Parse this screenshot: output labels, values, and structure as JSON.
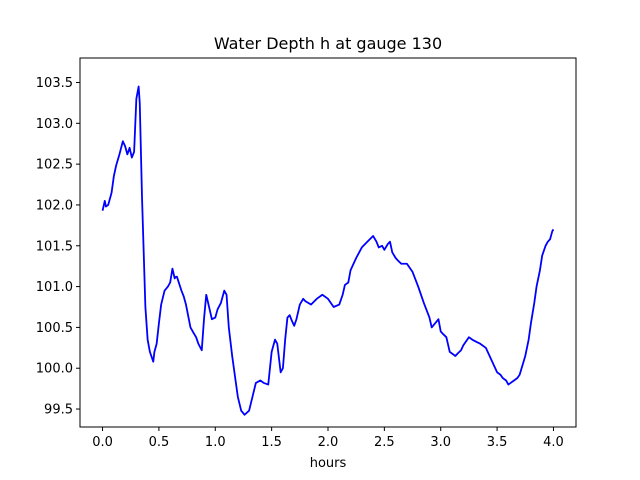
{
  "chart_data": {
    "type": "line",
    "title": "Water Depth h at gauge 130",
    "xlabel": "hours",
    "ylabel": "",
    "xlim": [
      -0.2,
      4.2
    ],
    "ylim": [
      99.28,
      103.8
    ],
    "xticks": [
      0.0,
      0.5,
      1.0,
      1.5,
      2.0,
      2.5,
      3.0,
      3.5,
      4.0
    ],
    "xtick_labels": [
      "0.0",
      "0.5",
      "1.0",
      "1.5",
      "2.0",
      "2.5",
      "3.0",
      "3.5",
      "4.0"
    ],
    "yticks": [
      99.5,
      100.0,
      100.5,
      101.0,
      101.5,
      102.0,
      102.5,
      103.0,
      103.5
    ],
    "ytick_labels": [
      "99.5",
      "100.0",
      "100.5",
      "101.0",
      "101.5",
      "102.0",
      "102.5",
      "103.0",
      "103.5"
    ],
    "grid": false,
    "legend": "none",
    "series": [
      {
        "color": "#0000ff",
        "x": [
          0.0,
          0.02,
          0.03,
          0.05,
          0.08,
          0.1,
          0.12,
          0.15,
          0.18,
          0.2,
          0.22,
          0.24,
          0.26,
          0.28,
          0.3,
          0.32,
          0.33,
          0.35,
          0.37,
          0.38,
          0.4,
          0.42,
          0.45,
          0.46,
          0.48,
          0.5,
          0.52,
          0.55,
          0.58,
          0.6,
          0.62,
          0.64,
          0.65,
          0.66,
          0.7,
          0.72,
          0.74,
          0.78,
          0.8,
          0.83,
          0.85,
          0.88,
          0.9,
          0.92,
          0.95,
          0.97,
          1.0,
          1.02,
          1.05,
          1.08,
          1.1,
          1.12,
          1.15,
          1.18,
          1.2,
          1.23,
          1.26,
          1.3,
          1.33,
          1.36,
          1.4,
          1.43,
          1.47,
          1.5,
          1.53,
          1.55,
          1.58,
          1.6,
          1.62,
          1.64,
          1.66,
          1.68,
          1.7,
          1.72,
          1.75,
          1.78,
          1.8,
          1.85,
          1.9,
          1.95,
          2.0,
          2.05,
          2.1,
          2.13,
          2.15,
          2.18,
          2.2,
          2.25,
          2.3,
          2.35,
          2.4,
          2.43,
          2.45,
          2.48,
          2.5,
          2.53,
          2.55,
          2.57,
          2.6,
          2.62,
          2.65,
          2.7,
          2.75,
          2.8,
          2.85,
          2.9,
          2.92,
          2.95,
          2.98,
          3.0,
          3.02,
          3.05,
          3.08,
          3.1,
          3.13,
          3.15,
          3.18,
          3.2,
          3.25,
          3.28,
          3.32,
          3.35,
          3.4,
          3.45,
          3.5,
          3.53,
          3.55,
          3.58,
          3.6,
          3.62,
          3.65,
          3.68,
          3.7,
          3.75,
          3.78,
          3.8,
          3.83,
          3.85,
          3.88,
          3.9,
          3.93,
          3.95,
          3.97,
          3.99,
          4.0
        ],
        "y": [
          101.93,
          102.05,
          101.98,
          102.0,
          102.15,
          102.35,
          102.48,
          102.62,
          102.78,
          102.72,
          102.62,
          102.7,
          102.58,
          102.65,
          103.3,
          103.45,
          103.25,
          102.1,
          101.2,
          100.75,
          100.35,
          100.2,
          100.08,
          100.2,
          100.3,
          100.55,
          100.78,
          100.95,
          101.0,
          101.05,
          101.22,
          101.1,
          101.12,
          101.12,
          100.95,
          100.88,
          100.78,
          100.5,
          100.45,
          100.38,
          100.3,
          100.22,
          100.6,
          100.9,
          100.72,
          100.6,
          100.62,
          100.72,
          100.8,
          100.95,
          100.9,
          100.5,
          100.15,
          99.85,
          99.65,
          99.48,
          99.43,
          99.48,
          99.65,
          99.82,
          99.85,
          99.82,
          99.8,
          100.2,
          100.35,
          100.3,
          99.95,
          100.0,
          100.35,
          100.62,
          100.65,
          100.58,
          100.52,
          100.6,
          100.78,
          100.85,
          100.82,
          100.78,
          100.85,
          100.9,
          100.85,
          100.75,
          100.78,
          100.9,
          101.02,
          101.05,
          101.2,
          101.35,
          101.48,
          101.55,
          101.62,
          101.55,
          101.48,
          101.5,
          101.45,
          101.52,
          101.55,
          101.42,
          101.35,
          101.32,
          101.28,
          101.28,
          101.18,
          101.0,
          100.8,
          100.62,
          100.5,
          100.55,
          100.6,
          100.45,
          100.42,
          100.38,
          100.2,
          100.18,
          100.15,
          100.18,
          100.22,
          100.28,
          100.38,
          100.35,
          100.32,
          100.3,
          100.25,
          100.1,
          99.95,
          99.92,
          99.88,
          99.85,
          99.8,
          99.82,
          99.85,
          99.88,
          99.92,
          100.15,
          100.35,
          100.55,
          100.8,
          101.0,
          101.2,
          101.38,
          101.5,
          101.55,
          101.58,
          101.68,
          101.7
        ]
      }
    ]
  }
}
